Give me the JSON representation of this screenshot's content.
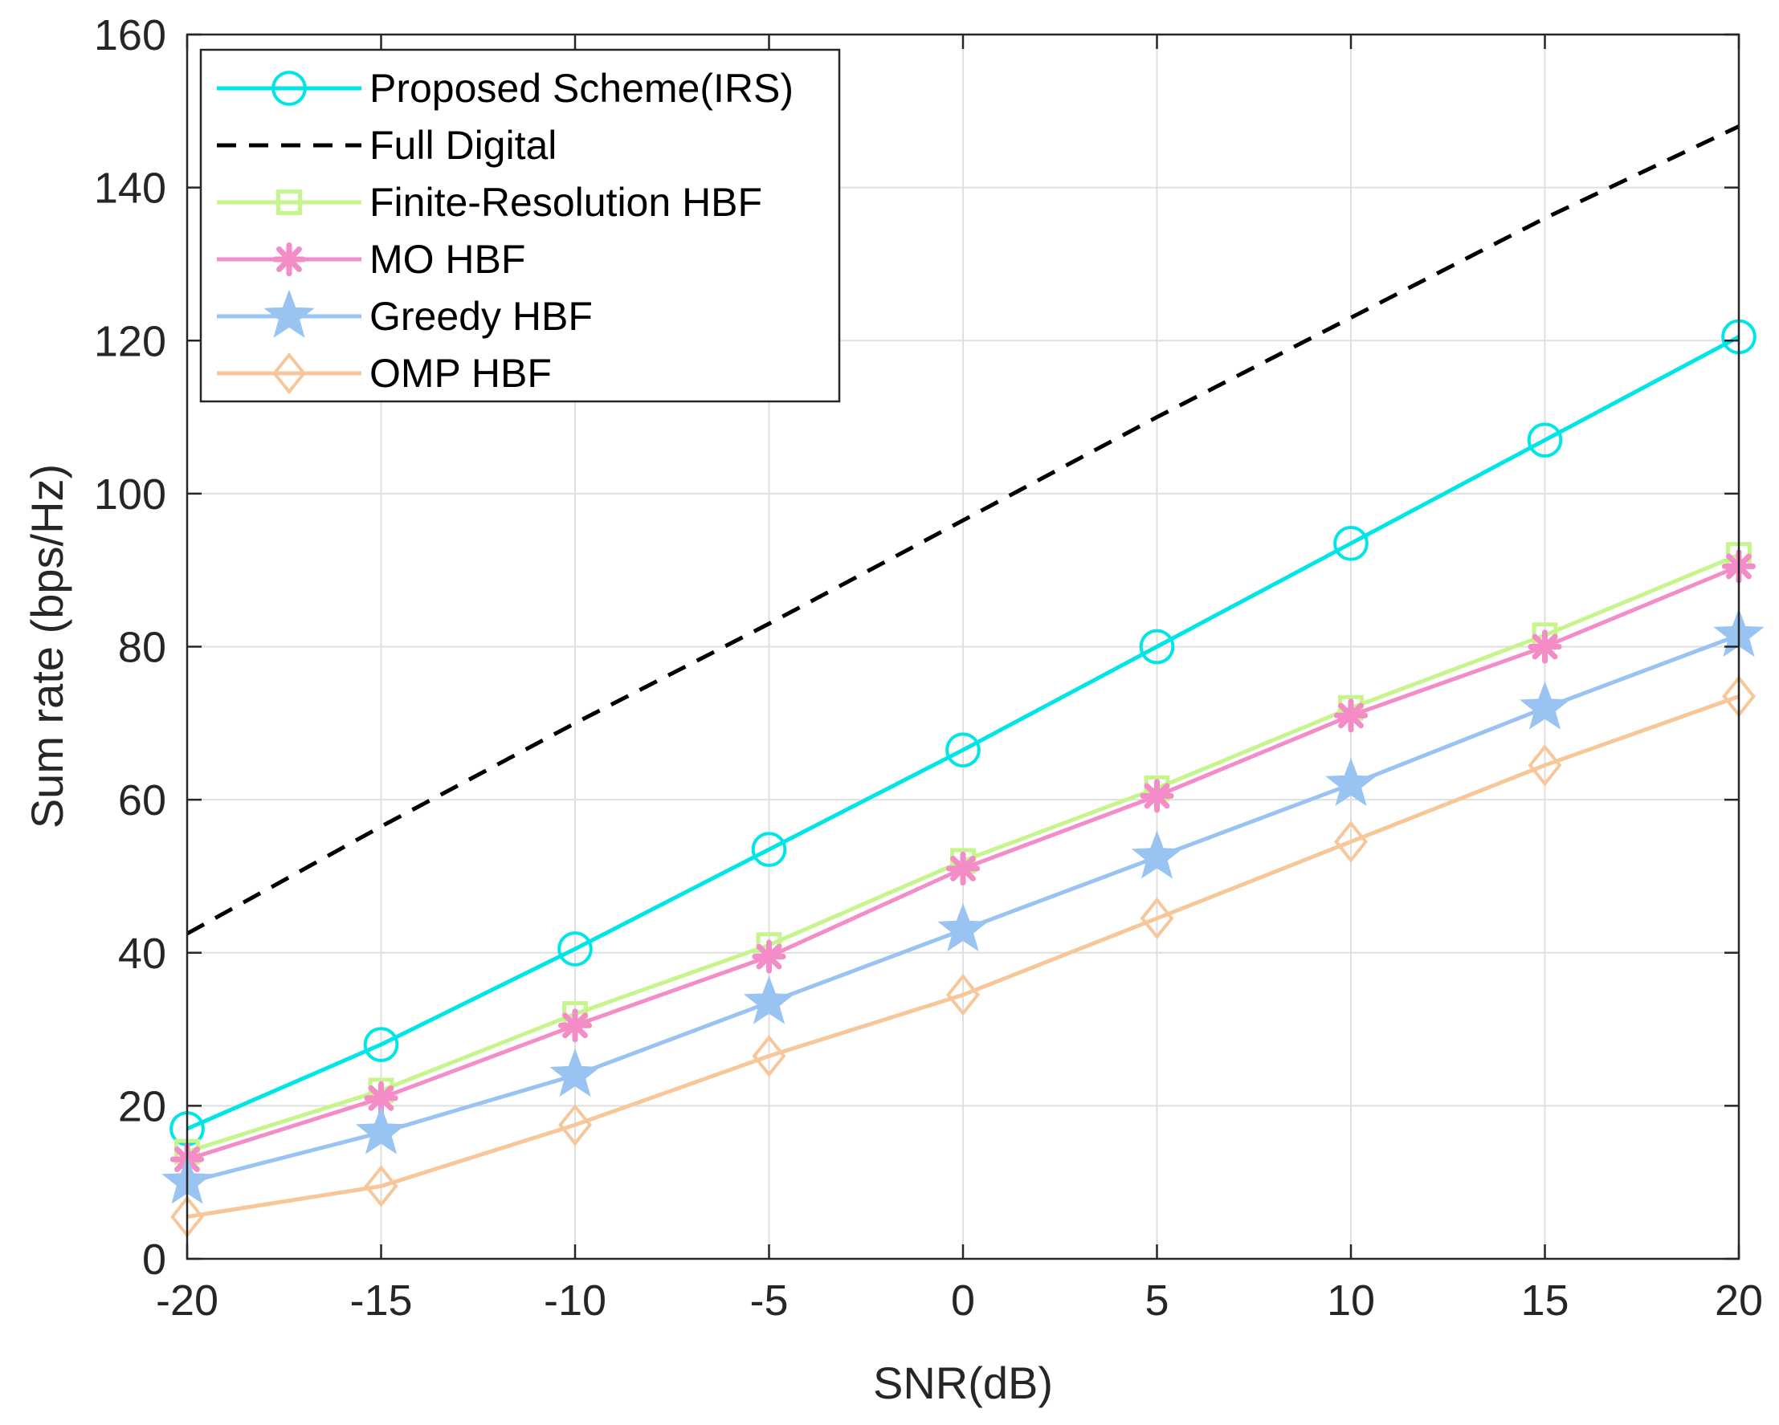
{
  "chart_data": {
    "type": "line",
    "title": "",
    "xlabel": "SNR(dB)",
    "ylabel": "Sum rate (bps/Hz)",
    "x": [
      -20,
      -15,
      -10,
      -5,
      0,
      5,
      10,
      15,
      20
    ],
    "xlim": [
      -20,
      20
    ],
    "ylim": [
      0,
      160
    ],
    "xticks": [
      -20,
      -15,
      -10,
      -5,
      0,
      5,
      10,
      15,
      20
    ],
    "yticks": [
      0,
      20,
      40,
      60,
      80,
      100,
      120,
      140,
      160
    ],
    "grid": true,
    "legend_position": "top-left",
    "series": [
      {
        "name": "Proposed Scheme(IRS)",
        "values": [
          17,
          28,
          40.5,
          53.5,
          66.5,
          80,
          93.5,
          107,
          120.5
        ],
        "color": "#00e5e5",
        "marker": "circle",
        "line_style": "solid"
      },
      {
        "name": "Full Digital",
        "values": [
          42.5,
          56.5,
          70,
          83,
          96.5,
          110,
          123,
          136,
          148
        ],
        "color": "#000000",
        "marker": "none",
        "line_style": "dashed"
      },
      {
        "name": "Finite-Resolution HBF",
        "values": [
          14,
          22,
          32,
          41,
          52,
          61.5,
          72,
          81.5,
          92
        ],
        "color": "#c6f58c",
        "marker": "square",
        "line_style": "solid"
      },
      {
        "name": "MO HBF",
        "values": [
          13,
          21,
          30.5,
          39.5,
          51,
          60.5,
          71,
          80,
          90.5
        ],
        "color": "#f48cc8",
        "marker": "asterisk",
        "line_style": "solid"
      },
      {
        "name": "Greedy HBF",
        "values": [
          10,
          16.5,
          24,
          33.5,
          43,
          52.5,
          62,
          72,
          81.5
        ],
        "color": "#99c4f2",
        "marker": "star",
        "line_style": "solid"
      },
      {
        "name": "OMP HBF",
        "values": [
          5.5,
          9.5,
          17.5,
          26.5,
          34.5,
          44.5,
          54.5,
          64.5,
          73.5
        ],
        "color": "#f8c799",
        "marker": "diamond",
        "line_style": "solid"
      }
    ]
  }
}
